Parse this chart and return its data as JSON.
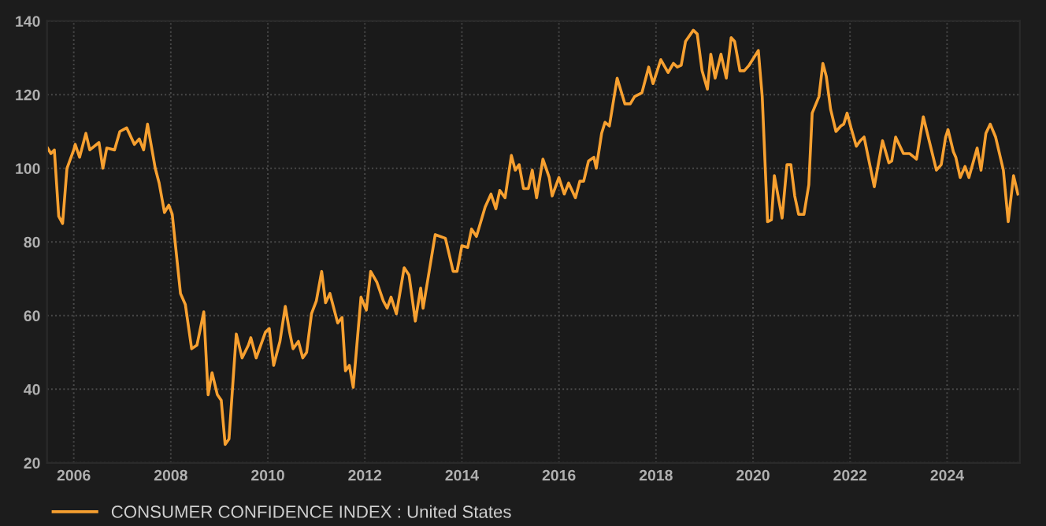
{
  "chart_data": {
    "type": "line",
    "xlim": [
      2005.45,
      2025.5
    ],
    "xticks": [
      2006,
      2008,
      2010,
      2012,
      2014,
      2016,
      2018,
      2020,
      2022,
      2024
    ],
    "ylim": [
      20,
      140
    ],
    "yticks": [
      20,
      40,
      60,
      80,
      100,
      120,
      140
    ],
    "grid": true,
    "legend": "bottom",
    "line_style": "solid",
    "marker": "none",
    "series": [
      {
        "name": "CONSUMER CONFIDENCE INDEX : United States",
        "color": "#f7a030",
        "x": [
          2005.46,
          2005.53,
          2005.6,
          2005.69,
          2005.77,
          2005.86,
          2006.0,
          2006.03,
          2006.12,
          2006.25,
          2006.33,
          2006.52,
          2006.6,
          2006.68,
          2006.84,
          2006.95,
          2007.09,
          2007.25,
          2007.35,
          2007.44,
          2007.52,
          2007.68,
          2007.76,
          2007.87,
          2007.96,
          2008.03,
          2008.2,
          2008.3,
          2008.43,
          2008.54,
          2008.68,
          2008.77,
          2008.85,
          2008.96,
          2009.04,
          2009.12,
          2009.2,
          2009.35,
          2009.47,
          2009.6,
          2009.65,
          2009.76,
          2009.95,
          2010.03,
          2010.12,
          2010.25,
          2010.36,
          2010.45,
          2010.52,
          2010.63,
          2010.72,
          2010.8,
          2010.9,
          2011.0,
          2011.11,
          2011.19,
          2011.28,
          2011.44,
          2011.53,
          2011.6,
          2011.68,
          2011.76,
          2011.92,
          2012.03,
          2012.12,
          2012.25,
          2012.38,
          2012.46,
          2012.54,
          2012.65,
          2012.81,
          2012.91,
          2013.04,
          2013.15,
          2013.2,
          2013.45,
          2013.66,
          2013.82,
          2013.9,
          2014.0,
          2014.12,
          2014.2,
          2014.3,
          2014.48,
          2014.6,
          2014.7,
          2014.78,
          2014.89,
          2015.02,
          2015.1,
          2015.18,
          2015.27,
          2015.37,
          2015.45,
          2015.54,
          2015.67,
          2015.8,
          2015.86,
          2016.0,
          2016.11,
          2016.2,
          2016.34,
          2016.43,
          2016.51,
          2016.61,
          2016.72,
          2016.77,
          2016.88,
          2016.95,
          2017.04,
          2017.2,
          2017.36,
          2017.47,
          2017.56,
          2017.71,
          2017.85,
          2017.94,
          2018.1,
          2018.25,
          2018.36,
          2018.44,
          2018.52,
          2018.61,
          2018.77,
          2018.85,
          2018.95,
          2019.06,
          2019.13,
          2019.22,
          2019.34,
          2019.45,
          2019.55,
          2019.62,
          2019.73,
          2019.82,
          2019.92,
          2020.11,
          2020.19,
          2020.3,
          2020.38,
          2020.44,
          2020.6,
          2020.7,
          2020.78,
          2020.86,
          2020.94,
          2021.05,
          2021.15,
          2021.22,
          2021.36,
          2021.44,
          2021.51,
          2021.6,
          2021.71,
          2021.81,
          2021.87,
          2021.94,
          2022.02,
          2022.13,
          2022.21,
          2022.29,
          2022.5,
          2022.67,
          2022.8,
          2022.86,
          2022.94,
          2023.1,
          2023.23,
          2023.37,
          2023.51,
          2023.64,
          2023.78,
          2023.88,
          2023.97,
          2024.02,
          2024.13,
          2024.18,
          2024.27,
          2024.37,
          2024.45,
          2024.62,
          2024.7,
          2024.8,
          2024.89,
          2025.0,
          2025.16,
          2025.26,
          2025.37,
          2025.46
        ],
        "values": [
          105.5,
          104,
          105,
          87,
          85,
          100,
          105,
          106.5,
          103,
          109.5,
          105,
          107,
          100,
          105.5,
          105,
          110,
          111,
          106.5,
          108,
          105,
          112,
          100,
          96,
          88,
          90,
          87.5,
          66,
          63,
          51,
          52,
          61,
          38.5,
          44.5,
          38.5,
          37,
          25,
          26.5,
          55,
          48.5,
          52,
          54,
          48.5,
          55.5,
          56.5,
          46.5,
          53,
          62.5,
          55.5,
          51,
          53,
          48.5,
          50,
          60.5,
          64,
          72,
          63.5,
          66,
          58,
          59.5,
          45,
          46.5,
          40.5,
          65,
          61.5,
          72,
          69,
          64,
          62,
          65,
          60.5,
          73,
          71,
          58.5,
          67.5,
          62,
          82,
          81,
          72,
          72,
          79,
          78.5,
          83.5,
          81.5,
          89.5,
          93,
          89,
          94,
          92,
          103.5,
          99.5,
          101,
          94.5,
          94.5,
          99.5,
          92,
          102.5,
          97.5,
          92.5,
          97.5,
          93,
          96,
          92,
          96.5,
          96.5,
          102,
          103,
          100,
          109.5,
          112.5,
          111.5,
          124.5,
          117.5,
          117.5,
          119.5,
          120.5,
          127.5,
          123,
          129.5,
          126,
          128.5,
          127.5,
          128,
          134.5,
          137.5,
          136.5,
          126.5,
          121.5,
          131,
          124.5,
          131,
          124.5,
          135.5,
          134.5,
          126.5,
          126.5,
          128,
          132,
          119.5,
          85.5,
          86,
          98,
          86.5,
          101,
          101,
          92.5,
          87.5,
          87.5,
          95.5,
          115,
          119.5,
          128.5,
          125,
          116,
          110,
          111.5,
          112,
          115,
          111,
          106,
          107.5,
          108.5,
          95,
          107.5,
          101.5,
          102,
          108.5,
          104,
          104,
          102.5,
          114,
          107,
          99.5,
          101,
          108.5,
          110.5,
          104.5,
          103,
          97.5,
          100.5,
          97.5,
          105.5,
          99.5,
          109.5,
          112,
          108.5,
          99.5,
          85.5,
          98,
          93
        ]
      }
    ]
  }
}
